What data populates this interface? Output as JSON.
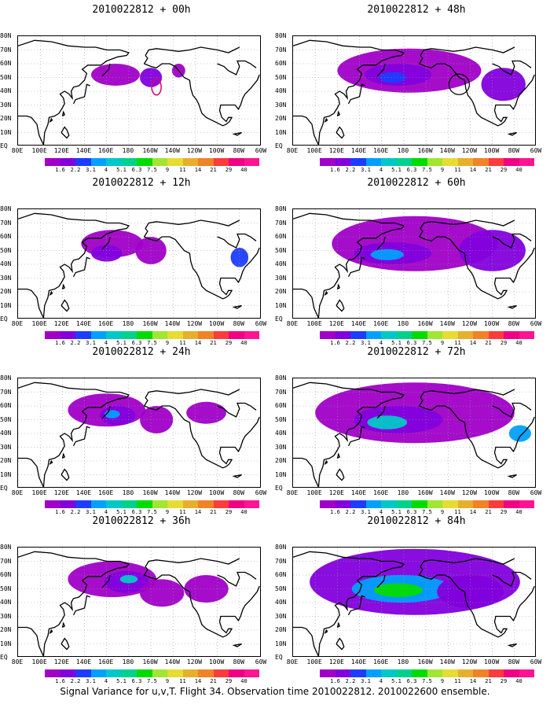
{
  "panels": [
    {
      "title": "2010022812 + 00h",
      "intensity": 0.25,
      "circle": true,
      "circle_color": "#e0006a"
    },
    {
      "title": "2010022812 + 12h",
      "intensity": 0.35
    },
    {
      "title": "2010022812 + 24h",
      "intensity": 0.45
    },
    {
      "title": "2010022812 + 36h",
      "intensity": 0.55
    },
    {
      "title": "2010022812 + 48h",
      "intensity": 0.6,
      "circle": true,
      "circle_color": "#000000"
    },
    {
      "title": "2010022812 + 60h",
      "intensity": 0.7
    },
    {
      "title": "2010022812 + 72h",
      "intensity": 0.82
    },
    {
      "title": "2010022812 + 84h",
      "intensity": 0.9
    }
  ],
  "lat_labels": [
    "80N",
    "70N",
    "60N",
    "50N",
    "40N",
    "30N",
    "20N",
    "10N",
    "EQ"
  ],
  "lon_labels": [
    "80E",
    "100E",
    "120E",
    "140E",
    "160E",
    "180",
    "160W",
    "140W",
    "120W",
    "100W",
    "80W",
    "60W"
  ],
  "colorbar": {
    "labels": [
      "1.6",
      "2.2",
      "3.1",
      "4",
      "5.1",
      "6.3",
      "7.5",
      "9",
      "11",
      "14",
      "21",
      "29",
      "40"
    ],
    "colors": [
      "#a000c8",
      "#8200dc",
      "#1e3cff",
      "#00a0ff",
      "#00c8c8",
      "#00d28c",
      "#00dc00",
      "#a0e632",
      "#e6dc32",
      "#e6af2d",
      "#f08228",
      "#fa3c3c",
      "#f00082"
    ]
  },
  "caption": "Signal Variance for u,v,T. Flight 34. Observation time 2010022812. 2010022600 ensemble."
}
